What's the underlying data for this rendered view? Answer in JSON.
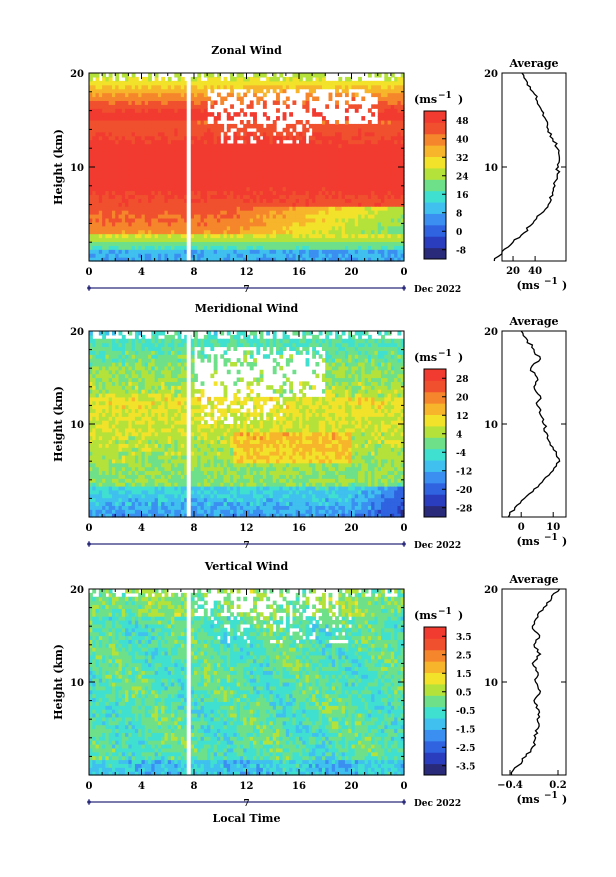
{
  "colors": {
    "palette": [
      "#2a2a7a",
      "#2a3dbf",
      "#2f63e0",
      "#3a8ff0",
      "#3fc0ef",
      "#40e0d0",
      "#6ee08a",
      "#b4e23a",
      "#f2e32a",
      "#f6b52b",
      "#f6862b",
      "#f0502e",
      "#f23b30"
    ],
    "background": "#ffffff"
  },
  "chart_data": [
    {
      "type": "heatmap",
      "title": "Zonal Wind",
      "ylabel": "Height (km)",
      "xlabel": "",
      "date_label": "Dec 2022",
      "day_label": "7",
      "x_ticks": [
        "0",
        "4",
        "8",
        "12",
        "16",
        "20",
        "0"
      ],
      "y_ticks": [
        "10",
        "20"
      ],
      "xlim": [
        0,
        24
      ],
      "ylim": [
        0,
        20
      ],
      "unit_label": "(ms",
      "unit_sup": "−1",
      "colorbar_ticks": [
        "48",
        "40",
        "32",
        "24",
        "16",
        "8",
        "0",
        "-8"
      ],
      "colorbar_range": [
        -12,
        52
      ],
      "profile": {
        "title": "Average",
        "y": [
          0,
          1,
          2,
          3,
          4,
          5,
          6,
          7,
          8,
          9,
          10,
          11,
          12,
          13,
          14,
          15,
          16,
          17,
          18,
          19,
          20
        ],
        "x": [
          3,
          10,
          20,
          30,
          38,
          45,
          52,
          56,
          58,
          60,
          61,
          62,
          60,
          56,
          52,
          50,
          46,
          42,
          38,
          33,
          28
        ],
        "xlim": [
          10,
          68
        ],
        "x_ticks": [
          "20",
          "40"
        ],
        "y_ticks": [
          "10",
          "20"
        ],
        "xlabel": "(ms",
        "xlabel_sup": "−1"
      }
    },
    {
      "type": "heatmap",
      "title": "Meridional Wind",
      "ylabel": "Height (km)",
      "xlabel": "",
      "date_label": "Dec 2022",
      "day_label": "7",
      "x_ticks": [
        "0",
        "4",
        "8",
        "12",
        "16",
        "20",
        "0"
      ],
      "y_ticks": [
        "10",
        "20"
      ],
      "xlim": [
        0,
        24
      ],
      "ylim": [
        0,
        20
      ],
      "unit_label": "(ms",
      "unit_sup": "−1",
      "colorbar_ticks": [
        "28",
        "20",
        "12",
        "4",
        "-4",
        "-12",
        "-20",
        "-28"
      ],
      "colorbar_range": [
        -32,
        32
      ],
      "profile": {
        "title": "Average",
        "y": [
          0,
          1,
          2,
          3,
          4,
          5,
          6,
          7,
          8,
          9,
          10,
          11,
          12,
          13,
          14,
          15,
          16,
          17,
          18,
          19,
          20
        ],
        "x": [
          -4,
          -2,
          1,
          4,
          7,
          10,
          12,
          11,
          9,
          8,
          7,
          6,
          5,
          6,
          4,
          5,
          3,
          6,
          4,
          2,
          0
        ],
        "xlim": [
          -6,
          14
        ],
        "x_ticks": [
          "0",
          "10"
        ],
        "y_ticks": [
          "10",
          "20"
        ],
        "xlabel": "(ms",
        "xlabel_sup": "−1"
      }
    },
    {
      "type": "heatmap",
      "title": "Vertical Wind",
      "ylabel": "Height (km)",
      "xlabel": "Local Time",
      "date_label": "Dec 2022",
      "day_label": "7",
      "x_ticks": [
        "0",
        "4",
        "8",
        "12",
        "16",
        "20",
        "0"
      ],
      "y_ticks": [
        "10",
        "20"
      ],
      "xlim": [
        0,
        24
      ],
      "ylim": [
        0,
        20
      ],
      "unit_label": "(ms",
      "unit_sup": "−1",
      "colorbar_ticks": [
        "3.5",
        "2.5",
        "1.5",
        "0.5",
        "-0.5",
        "-1.5",
        "-2.5",
        "-3.5"
      ],
      "colorbar_range": [
        -4,
        4
      ],
      "profile": {
        "title": "Average",
        "y": [
          0,
          1,
          2,
          3,
          4,
          5,
          6,
          7,
          8,
          9,
          10,
          11,
          12,
          13,
          14,
          15,
          16,
          17,
          18,
          19,
          20
        ],
        "x": [
          -0.38,
          -0.3,
          -0.2,
          -0.12,
          -0.08,
          -0.05,
          -0.06,
          -0.04,
          -0.1,
          -0.02,
          -0.08,
          -0.05,
          -0.12,
          -0.02,
          -0.1,
          -0.03,
          -0.12,
          -0.05,
          0.02,
          0.12,
          0.22
        ],
        "xlim": [
          -0.5,
          0.3
        ],
        "x_ticks": [
          "−0.4",
          "0.2"
        ],
        "y_ticks": [
          "10",
          "20"
        ],
        "xlabel": "(ms",
        "xlabel_sup": "−1"
      }
    }
  ]
}
